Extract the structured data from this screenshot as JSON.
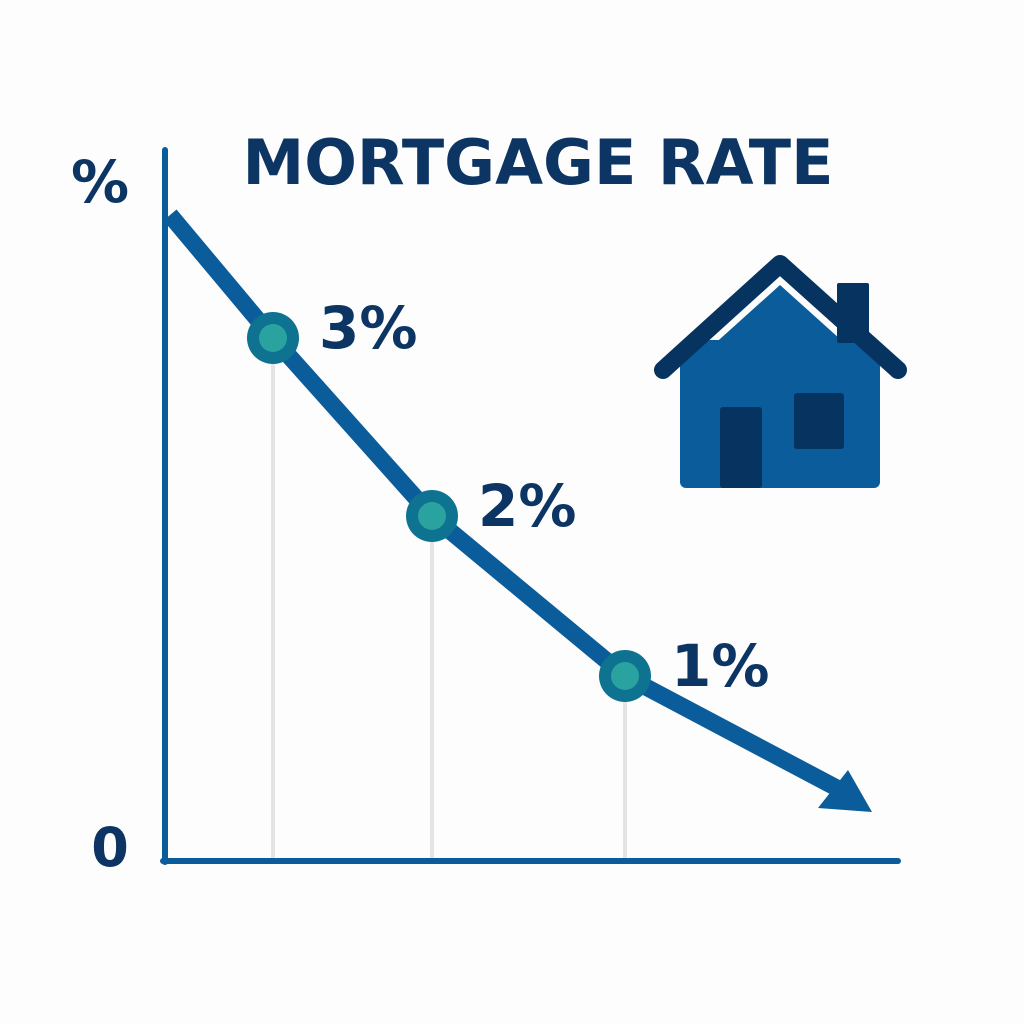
{
  "chart_data": {
    "type": "line",
    "title": "MORTGAGE RATE",
    "ylabel": "%",
    "y_origin_label": "0",
    "trend": "decreasing",
    "points": [
      {
        "label": "3%",
        "value": 3
      },
      {
        "label": "2%",
        "value": 2
      },
      {
        "label": "1%",
        "value": 1
      }
    ],
    "grid": false,
    "icon": "house-icon",
    "colors": {
      "text": "#0c3563",
      "line": "#0b5c9a",
      "marker_outer": "#0d7390",
      "marker_inner": "#2aa3a0",
      "house_body": "#0b5c9a",
      "house_roof": "#06335f",
      "drop_line": "#e2e4e6"
    }
  }
}
